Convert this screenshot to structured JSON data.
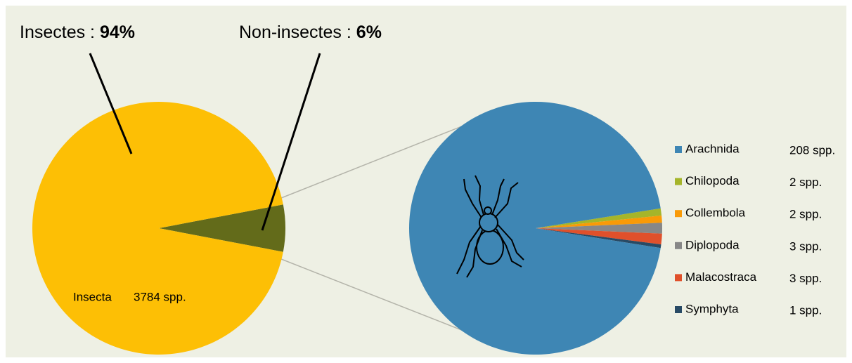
{
  "chart_data": [
    {
      "type": "pie",
      "categories": [
        "Insectes :",
        "Non-insectes :"
      ],
      "values": [
        94,
        6
      ],
      "value_labels": [
        "94%",
        "6%"
      ],
      "colors": [
        "#fdbf05",
        "#636b1a"
      ],
      "annotations": [
        "Insecta",
        "3784 spp."
      ]
    },
    {
      "type": "pie",
      "categories": [
        "Arachnida",
        "Chilopoda",
        "Collembola",
        "Diplopoda",
        "Malacostraca",
        "Symphyta"
      ],
      "values": [
        208,
        2,
        2,
        3,
        3,
        1
      ],
      "value_labels": [
        "208 spp.",
        "2 spp.",
        "2 spp.",
        "3 spp.",
        "3 spp.",
        "1 spp."
      ],
      "colors": [
        "#3e86b4",
        "#a5b52a",
        "#f99a07",
        "#878787",
        "#e0502b",
        "#284a65"
      ],
      "legend": "right"
    }
  ]
}
